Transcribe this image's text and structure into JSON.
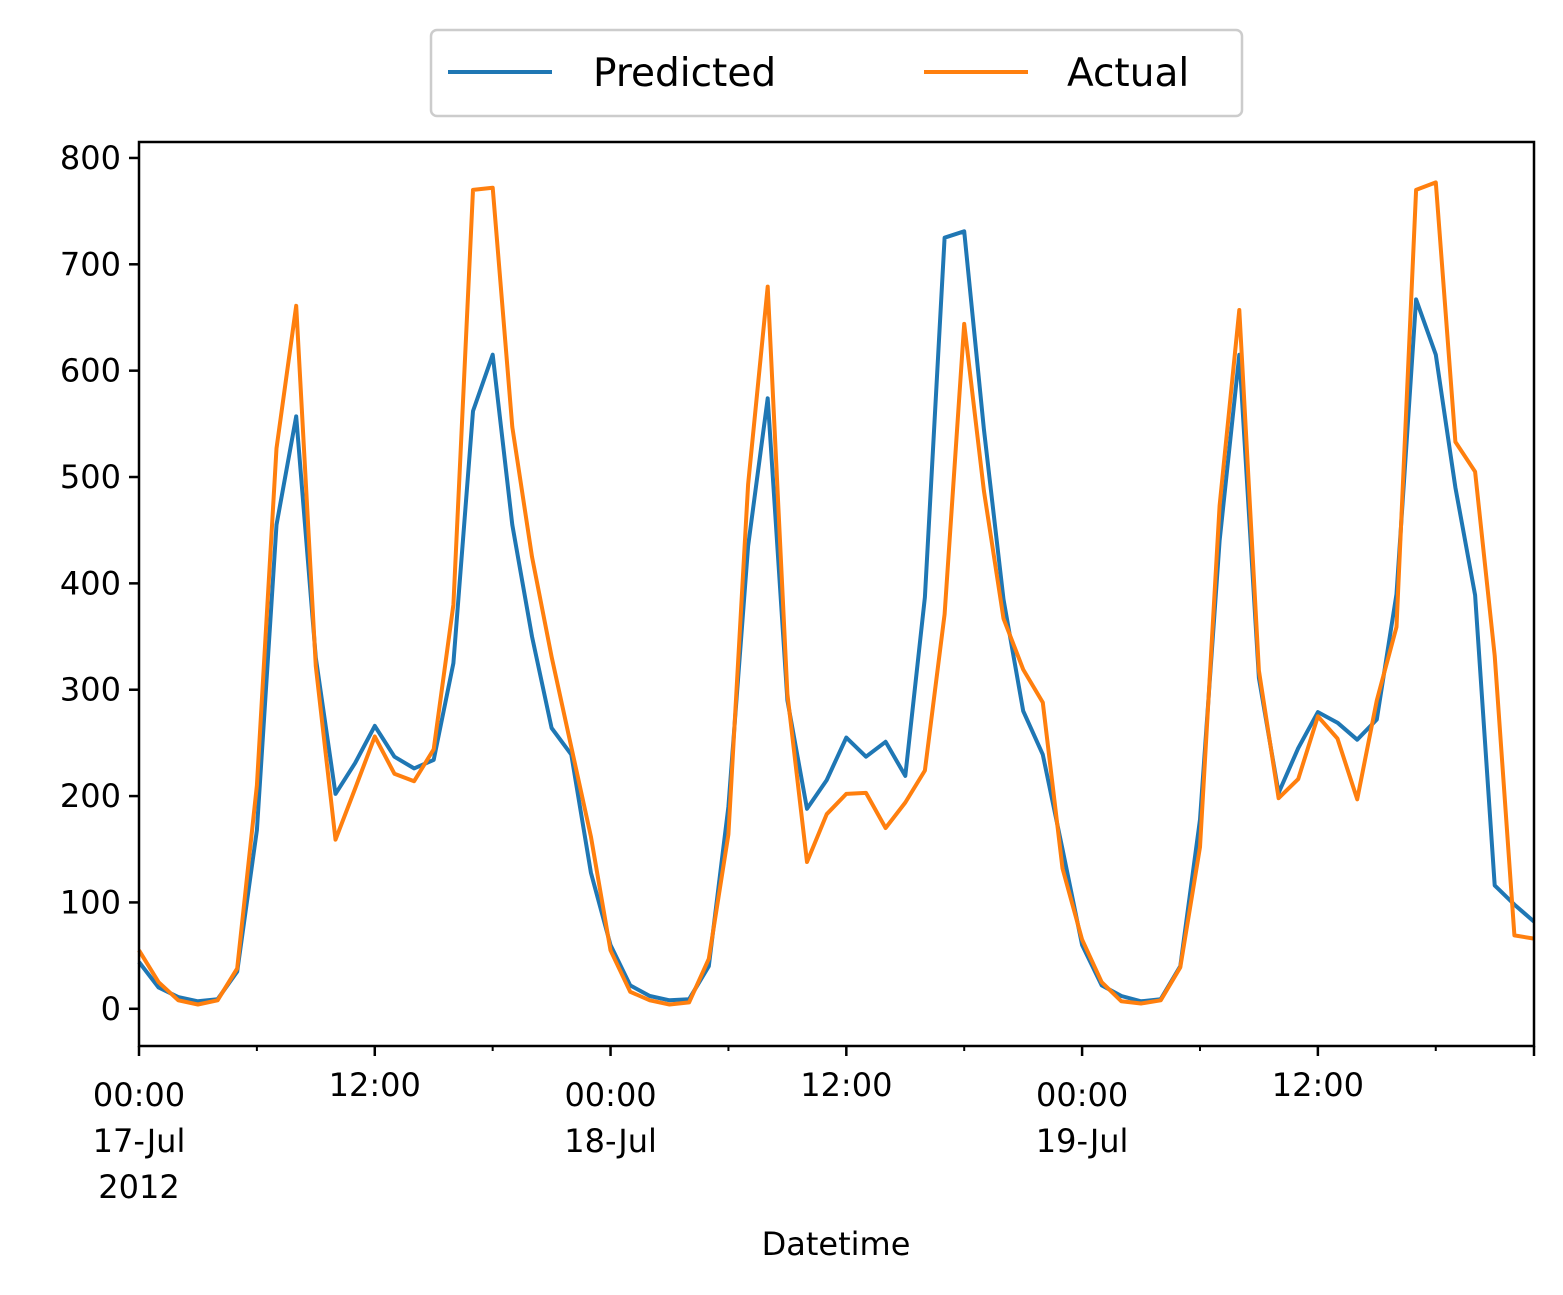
{
  "chart_data": {
    "type": "line",
    "title": "",
    "xlabel": "Datetime",
    "ylabel": "",
    "x_start": "2012-07-17 00:00",
    "x_end": "2012-07-19 23:00",
    "x_interval": "1 hour",
    "ylim": [
      -35,
      815
    ],
    "yticks": [
      0,
      100,
      200,
      300,
      400,
      500,
      600,
      700,
      800
    ],
    "xticks": [
      {
        "x": "2012-07-17 00:00",
        "lines": [
          "00:00",
          "17-Jul",
          "2012"
        ]
      },
      {
        "x": "2012-07-17 12:00",
        "lines": [
          "12:00"
        ]
      },
      {
        "x": "2012-07-18 00:00",
        "lines": [
          "00:00",
          "18-Jul"
        ]
      },
      {
        "x": "2012-07-18 12:00",
        "lines": [
          "12:00"
        ]
      },
      {
        "x": "2012-07-19 00:00",
        "lines": [
          "00:00",
          "19-Jul"
        ]
      },
      {
        "x": "2012-07-19 12:00",
        "lines": [
          "12:00"
        ]
      }
    ],
    "grid": false,
    "legend_position": "top-center",
    "series": [
      {
        "name": "Predicted",
        "color": "#1f77b4",
        "values": [
          44,
          20,
          11,
          7,
          9,
          35,
          168,
          455,
          557,
          330,
          202,
          231,
          266,
          237,
          226,
          234,
          325,
          562,
          615,
          455,
          350,
          264,
          239,
          128,
          60,
          22,
          12,
          8,
          9,
          40,
          190,
          435,
          574,
          290,
          188,
          215,
          255,
          237,
          251,
          219,
          387,
          725,
          731,
          545,
          385,
          280,
          239,
          150,
          60,
          22,
          12,
          7,
          9,
          40,
          178,
          440,
          615,
          311,
          203,
          245,
          279,
          269,
          253,
          272,
          390,
          667,
          615,
          490,
          389,
          116,
          98,
          82
        ]
      },
      {
        "name": "Actual",
        "color": "#ff7f0e",
        "values": [
          55,
          25,
          8,
          4,
          8,
          38,
          210,
          527,
          661,
          322,
          159,
          207,
          256,
          221,
          214,
          244,
          380,
          770,
          772,
          547,
          425,
          331,
          246,
          162,
          55,
          16,
          8,
          4,
          6,
          47,
          164,
          493,
          679,
          296,
          138,
          183,
          202,
          203,
          170,
          194,
          224,
          371,
          644,
          487,
          367,
          319,
          288,
          132,
          65,
          25,
          7,
          5,
          8,
          39,
          152,
          473,
          657,
          318,
          198,
          216,
          275,
          254,
          197,
          290,
          359,
          770,
          777,
          533,
          505,
          332,
          69,
          66
        ]
      }
    ]
  }
}
